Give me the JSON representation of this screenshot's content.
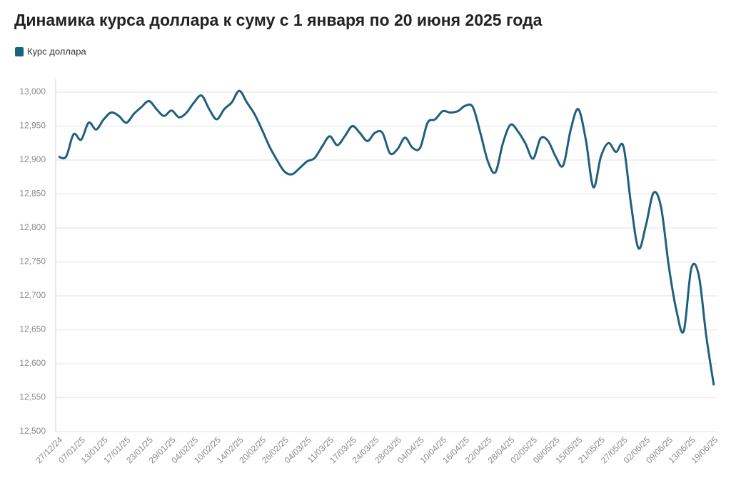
{
  "chart_data": {
    "type": "line",
    "title": "Динамика курса доллара к суму с 1 января по 20 июня 2025 года",
    "categories": [
      "27/12/24",
      null,
      null,
      "07/01/25",
      null,
      null,
      "13/01/25",
      null,
      null,
      "17/01/25",
      null,
      null,
      "23/01/25",
      null,
      null,
      "29/01/25",
      null,
      null,
      "04/02/25",
      null,
      null,
      "10/02/25",
      null,
      null,
      "14/02/25",
      null,
      null,
      "20/02/25",
      null,
      null,
      "26/02/25",
      null,
      null,
      "04/03/25",
      null,
      null,
      "11/03/25",
      null,
      null,
      "17/03/25",
      null,
      null,
      "24/03/25",
      null,
      null,
      "28/03/25",
      null,
      null,
      "04/04/25",
      null,
      null,
      "10/04/25",
      null,
      null,
      "16/04/25",
      null,
      null,
      "22/04/25",
      null,
      null,
      "28/04/25",
      null,
      null,
      "02/05/25",
      null,
      null,
      "08/05/25",
      null,
      null,
      "15/05/25",
      null,
      null,
      "21/05/25",
      null,
      null,
      "27/05/25",
      null,
      null,
      "02/06/25",
      null,
      null,
      "09/06/25",
      null,
      null,
      "13/06/25",
      null,
      null,
      "19/06/25"
    ],
    "series": [
      {
        "name": "Курс доллара",
        "color": "#1f5f80",
        "values": [
          12905,
          12905,
          12938,
          12930,
          12955,
          12945,
          12960,
          12970,
          12965,
          12955,
          12968,
          12978,
          12987,
          12975,
          12965,
          12973,
          12963,
          12970,
          12985,
          12995,
          12975,
          12960,
          12975,
          12985,
          13002,
          12985,
          12968,
          12945,
          12920,
          12900,
          12883,
          12879,
          12888,
          12898,
          12903,
          12920,
          12935,
          12922,
          12935,
          12950,
          12940,
          12928,
          12940,
          12940,
          12910,
          12916,
          12933,
          12918,
          12918,
          12955,
          12960,
          12972,
          12970,
          12972,
          12980,
          12978,
          12940,
          12898,
          12882,
          12925,
          12952,
          12942,
          12924,
          12902,
          12932,
          12928,
          12905,
          12892,
          12945,
          12975,
          12930,
          12860,
          12905,
          12925,
          12912,
          12920,
          12835,
          12770,
          12805,
          12852,
          12830,
          12745,
          12680,
          12648,
          12740,
          12730,
          12640,
          12568
        ]
      }
    ],
    "ylim": [
      12500,
      13000
    ],
    "yticks": [
      {
        "value": 12500,
        "label": "12,500"
      },
      {
        "value": 12550,
        "label": "12,550"
      },
      {
        "value": 12600,
        "label": "12,600"
      },
      {
        "value": 12650,
        "label": "12,650"
      },
      {
        "value": 12700,
        "label": "12,700"
      },
      {
        "value": 12750,
        "label": "12,750"
      },
      {
        "value": 12800,
        "label": "12,800"
      },
      {
        "value": 12850,
        "label": "12,850"
      },
      {
        "value": 12900,
        "label": "12,900"
      },
      {
        "value": 12950,
        "label": "12,950"
      },
      {
        "value": 13000,
        "label": "13,000"
      }
    ],
    "grid": true,
    "legend": "top-left"
  }
}
